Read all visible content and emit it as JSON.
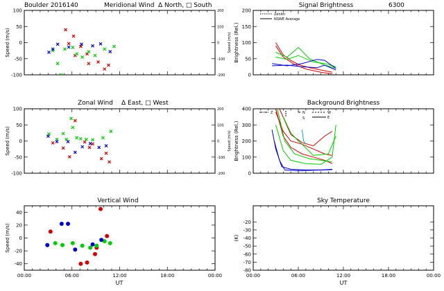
{
  "figure": {
    "site": "Boulder",
    "date_code": "2016140",
    "x_axis_label": "UT",
    "x_tick_labels": [
      "00:00",
      "06:00",
      "12:00",
      "18:00",
      "00:00"
    ],
    "x_range_hours": [
      0,
      24
    ]
  },
  "chart_data": [
    {
      "id": "meridional",
      "type": "scatter",
      "title_parts": [
        "Boulder  2016140",
        "Meridional Wind",
        "Δ North, □ South"
      ],
      "ylabel": "Speed (m/s)",
      "ylim": [
        -100,
        100
      ],
      "yticks": [
        -100,
        -50,
        0,
        50,
        100
      ],
      "right_axis": {
        "label": "Speed (m/s)",
        "ylim": [
          -200,
          200
        ],
        "yticks": [
          -200,
          -100,
          0,
          100,
          200
        ]
      },
      "series": [
        {
          "color": "#d00000",
          "symbol": "x",
          "points": [
            [
              5.2,
              40
            ],
            [
              5.6,
              -3
            ],
            [
              6.2,
              20
            ],
            [
              6.4,
              -40
            ],
            [
              7.1,
              -12
            ],
            [
              7.9,
              -35
            ],
            [
              8.1,
              -65
            ],
            [
              9.3,
              -60
            ],
            [
              10.1,
              -82
            ],
            [
              10.6,
              -70
            ]
          ]
        },
        {
          "color": "#00cc00",
          "symbol": "x",
          "points": [
            [
              3.6,
              -25
            ],
            [
              4.2,
              -65
            ],
            [
              4.6,
              -100
            ],
            [
              5.1,
              -20
            ],
            [
              6.1,
              -15
            ],
            [
              6.6,
              -35
            ],
            [
              7.3,
              -45
            ],
            [
              8.1,
              -28
            ],
            [
              8.9,
              -40
            ],
            [
              10.1,
              -20
            ],
            [
              11.3,
              -12
            ]
          ]
        },
        {
          "color": "#0000cc",
          "symbol": "x",
          "points": [
            [
              3.1,
              -30
            ],
            [
              3.6,
              -20
            ],
            [
              4.2,
              -5
            ],
            [
              5.6,
              -14
            ],
            [
              7.2,
              -5
            ],
            [
              8.6,
              -10
            ],
            [
              9.6,
              -4
            ],
            [
              10.8,
              -28
            ]
          ]
        }
      ]
    },
    {
      "id": "zonal",
      "type": "scatter",
      "title_parts": [
        "Zonal Wind",
        "Δ East, □ West"
      ],
      "ylabel": "Speed (m/s)",
      "ylim": [
        -100,
        100
      ],
      "yticks": [
        -100,
        -50,
        0,
        50,
        100
      ],
      "right_axis": {
        "label": "Speed (m/s)",
        "ylim": [
          -200,
          200
        ],
        "yticks": [
          -200,
          -100,
          0,
          100,
          200
        ]
      },
      "series": [
        {
          "color": "#d00000",
          "symbol": "x",
          "points": [
            [
              3.6,
              -6
            ],
            [
              4.9,
              -22
            ],
            [
              5.7,
              -49
            ],
            [
              6.4,
              63
            ],
            [
              7.6,
              -3
            ],
            [
              8.2,
              -20
            ],
            [
              8.6,
              -9
            ],
            [
              9.7,
              -55
            ],
            [
              10.3,
              -38
            ],
            [
              10.7,
              -65
            ]
          ]
        },
        {
          "color": "#00cc00",
          "symbol": "x",
          "points": [
            [
              3.1,
              22
            ],
            [
              4.1,
              5
            ],
            [
              4.9,
              23
            ],
            [
              5.3,
              5
            ],
            [
              5.9,
              70
            ],
            [
              6.1,
              42
            ],
            [
              6.6,
              10
            ],
            [
              7.1,
              7
            ],
            [
              7.8,
              5
            ],
            [
              8.6,
              4
            ],
            [
              9.9,
              10
            ],
            [
              10.9,
              30
            ]
          ]
        },
        {
          "color": "#0000cc",
          "symbol": "x",
          "points": [
            [
              3.0,
              15
            ],
            [
              4.1,
              -2
            ],
            [
              5.5,
              -2
            ],
            [
              6.4,
              -35
            ],
            [
              7.3,
              -18
            ],
            [
              8.3,
              -8
            ],
            [
              9.4,
              -20
            ],
            [
              10.3,
              -15
            ]
          ]
        }
      ]
    },
    {
      "id": "vertical",
      "type": "scatter",
      "title_parts": [
        "Vertical Wind"
      ],
      "ylabel": "Speed (m/s)",
      "ylim": [
        -50,
        50
      ],
      "yticks": [
        -40,
        -20,
        0,
        20,
        40
      ],
      "series": [
        {
          "color": "#d00000",
          "symbol": "dot",
          "points": [
            [
              3.3,
              10
            ],
            [
              7.1,
              -40
            ],
            [
              7.9,
              -38
            ],
            [
              8.9,
              -25
            ],
            [
              9.1,
              -15
            ],
            [
              9.6,
              45
            ],
            [
              10.4,
              3
            ]
          ]
        },
        {
          "color": "#00cc00",
          "symbol": "dot",
          "points": [
            [
              3.9,
              -8
            ],
            [
              4.8,
              -11
            ],
            [
              6.1,
              -8
            ],
            [
              7.3,
              -12
            ],
            [
              8.3,
              -15
            ],
            [
              9.1,
              -12
            ],
            [
              10.1,
              -5
            ],
            [
              10.8,
              -8
            ]
          ]
        },
        {
          "color": "#0000cc",
          "symbol": "dot",
          "points": [
            [
              2.9,
              -11
            ],
            [
              4.7,
              22
            ],
            [
              5.5,
              22
            ],
            [
              6.4,
              -18
            ],
            [
              8.6,
              -10
            ],
            [
              9.7,
              -3
            ]
          ]
        }
      ]
    },
    {
      "id": "signal",
      "type": "line",
      "title_parts": [
        "Signal Brightness",
        "6300"
      ],
      "ylabel": "Brightness (Rel.)",
      "ylim": [
        0,
        200
      ],
      "yticks": [
        0,
        50,
        100,
        150,
        200
      ],
      "legend": [
        "Zenith",
        "NSWE Average"
      ],
      "series": [
        {
          "color": "#d00000",
          "points": [
            [
              3.0,
              100
            ],
            [
              4.0,
              62
            ],
            [
              5.0,
              45
            ],
            [
              6.0,
              32
            ],
            [
              7.5,
              22
            ],
            [
              9.0,
              15
            ],
            [
              10.5,
              8
            ]
          ]
        },
        {
          "color": "#d00000",
          "points": [
            [
              3.0,
              90
            ],
            [
              4.0,
              55
            ],
            [
              5.5,
              32
            ],
            [
              7.0,
              18
            ],
            [
              9.0,
              8
            ],
            [
              10.5,
              3
            ]
          ]
        },
        {
          "color": "#00cc00",
          "points": [
            [
              3.0,
              70
            ],
            [
              4.5,
              55
            ],
            [
              6.0,
              85
            ],
            [
              7.5,
              50
            ],
            [
              9.5,
              30
            ],
            [
              11.0,
              20
            ]
          ]
        },
        {
          "color": "#00cc00",
          "points": [
            [
              3.0,
              55
            ],
            [
              4.5,
              48
            ],
            [
              6.0,
              60
            ],
            [
              8.0,
              40
            ],
            [
              9.5,
              35
            ],
            [
              11.0,
              25
            ]
          ]
        },
        {
          "color": "#0000cc",
          "points": [
            [
              2.5,
              35
            ],
            [
              4.5,
              28
            ],
            [
              6.5,
              35
            ],
            [
              8.5,
              48
            ],
            [
              9.5,
              45
            ],
            [
              11.0,
              20
            ]
          ]
        },
        {
          "color": "#0000cc",
          "points": [
            [
              2.5,
              28
            ],
            [
              4.5,
              30
            ],
            [
              6.5,
              25
            ],
            [
              8.5,
              22
            ],
            [
              9.5,
              30
            ],
            [
              11.0,
              15
            ]
          ]
        }
      ]
    },
    {
      "id": "background",
      "type": "line",
      "title_parts": [
        "Background Brightness"
      ],
      "ylabel": "Brightness (Rel.)",
      "ylim": [
        0,
        400
      ],
      "yticks": [
        0,
        100,
        200,
        300,
        400
      ],
      "legend": [
        "Z",
        "N",
        "S",
        "W",
        "E"
      ],
      "series": [
        {
          "color": "#d00000",
          "points": [
            [
              3.0,
              400
            ],
            [
              4.0,
              230
            ],
            [
              5.0,
              160
            ],
            [
              6.5,
              120
            ],
            [
              8.0,
              100
            ],
            [
              9.5,
              80
            ],
            [
              10.5,
              60
            ]
          ]
        },
        {
          "color": "#d00000",
          "points": [
            [
              3.0,
              380
            ],
            [
              4.0,
              260
            ],
            [
              5.0,
              200
            ],
            [
              6.5,
              180
            ],
            [
              8.0,
              150
            ],
            [
              9.5,
              120
            ],
            [
              10.5,
              110
            ]
          ]
        },
        {
          "color": "#d00000",
          "points": [
            [
              3.5,
              400
            ],
            [
              5.0,
              240
            ],
            [
              6.5,
              190
            ],
            [
              8.0,
              170
            ],
            [
              9.5,
              230
            ],
            [
              10.5,
              260
            ]
          ]
        },
        {
          "color": "#00cc00",
          "points": [
            [
              3.0,
              300
            ],
            [
              4.0,
              140
            ],
            [
              5.0,
              80
            ],
            [
              7.0,
              60
            ],
            [
              9.0,
              55
            ],
            [
              10.5,
              100
            ],
            [
              11.0,
              300
            ]
          ]
        },
        {
          "color": "#00cc00",
          "points": [
            [
              3.2,
              400
            ],
            [
              4.2,
              200
            ],
            [
              5.5,
              120
            ],
            [
              7.5,
              90
            ],
            [
              9.0,
              80
            ],
            [
              10.5,
              70
            ]
          ]
        },
        {
          "color": "#00cc00",
          "points": [
            [
              4.0,
              350
            ],
            [
              5.0,
              250
            ],
            [
              6.0,
              200
            ],
            [
              6.5,
              180
            ],
            [
              8.0,
              110
            ],
            [
              10.0,
              120
            ],
            [
              11.0,
              230
            ]
          ]
        },
        {
          "color": "#00aaaa",
          "points": [
            [
              6.5,
              270
            ],
            [
              6.7,
              200
            ],
            [
              7.0,
              180
            ]
          ]
        },
        {
          "color": "#0000cc",
          "points": [
            [
              2.5,
              270
            ],
            [
              3.0,
              150
            ],
            [
              3.8,
              40
            ],
            [
              5.0,
              25
            ],
            [
              7.0,
              20
            ],
            [
              9.0,
              20
            ],
            [
              10.5,
              25
            ]
          ]
        },
        {
          "color": "#0000cc",
          "points": [
            [
              2.8,
              200
            ],
            [
              3.5,
              80
            ],
            [
              4.2,
              20
            ],
            [
              6.0,
              15
            ],
            [
              8.0,
              18
            ],
            [
              10.5,
              22
            ]
          ]
        }
      ]
    },
    {
      "id": "skytemp",
      "type": "line",
      "title_parts": [
        "Sky Temperature"
      ],
      "ylabel": "(K)",
      "ylim": [
        -80,
        0
      ],
      "yticks": [
        -80,
        -70,
        -60,
        -50,
        -40,
        -30,
        -20
      ],
      "series": []
    }
  ]
}
